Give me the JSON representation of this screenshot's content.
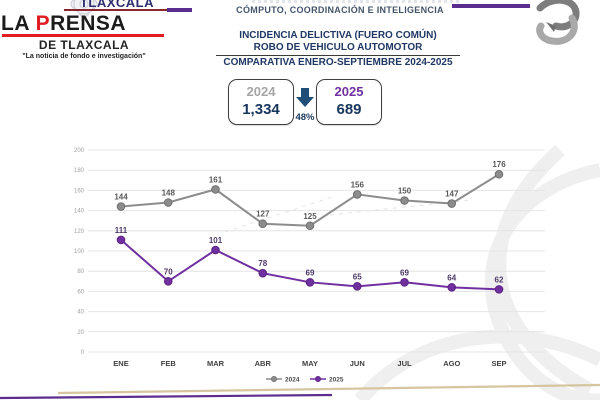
{
  "brand": {
    "masthead_top": "TLAXCALA",
    "name_la": "LA ",
    "name_p": "P",
    "name_rest": "RENSA",
    "subtitle": "DE TLAXCALA",
    "tagline": "\"La noticia de fondo e investigación\""
  },
  "header": {
    "agency_line": "CÓMPUTO, COORDINACIÓN E INTELIGENCIA",
    "title_line1": "INCIDENCIA DELICTIVA (FUERO COMÚN)",
    "title_line2": "ROBO DE VEHICULO AUTOMOTOR",
    "title_line3": "COMPARATIVA ENERO-SEPTIEMBRE 2024-2025"
  },
  "summary": {
    "year_left": "2024",
    "value_left": "1,334",
    "arrow_icon": "down-arrow",
    "change_percent": "48%",
    "year_right": "2025",
    "value_right": "689"
  },
  "chart_data": {
    "type": "line",
    "categories": [
      "ENE",
      "FEB",
      "MAR",
      "ABR",
      "MAY",
      "JUN",
      "JUL",
      "AGO",
      "SEP"
    ],
    "series": [
      {
        "name": "2024",
        "color": "#8c8c8c",
        "point_stroke": "#6f6f6f",
        "label_color": "#595959",
        "values": [
          144,
          148,
          161,
          127,
          125,
          156,
          150,
          147,
          176
        ]
      },
      {
        "name": "2025",
        "color": "#7030a0",
        "point_stroke": "#5c2482",
        "label_color": "#4d3a69",
        "values": [
          111,
          70,
          101,
          78,
          69,
          65,
          69,
          64,
          62
        ]
      }
    ],
    "ylim": [
      0,
      200
    ],
    "ytick_step": 20,
    "grid": true,
    "legend_position": "bottom",
    "title": "",
    "xlabel": "",
    "ylabel": ""
  },
  "colors": {
    "accent_purple": "#5b2d8e",
    "navy": "#1f3864",
    "red": "#e01b22",
    "gridline": "#e4e4e4",
    "tick_label": "#a0a0a0",
    "axis_label": "#404040"
  }
}
